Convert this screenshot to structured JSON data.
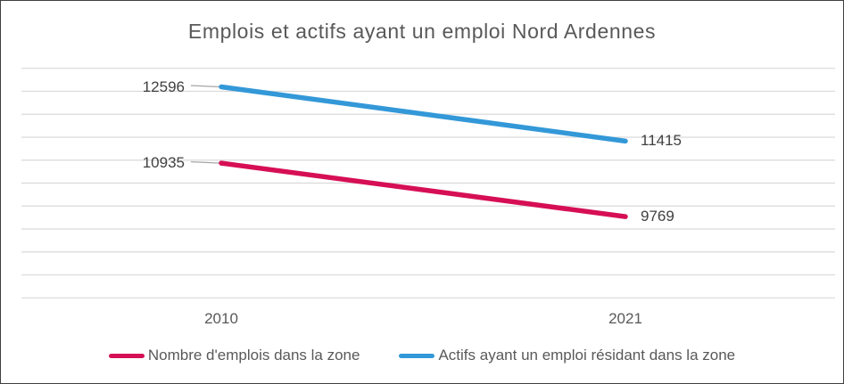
{
  "chart_data": {
    "type": "line",
    "title": "Emplois et actifs ayant un emploi Nord Ardennes",
    "categories": [
      "2010",
      "2021"
    ],
    "series": [
      {
        "name": "Nombre d'emplois dans la zone",
        "values": [
          10935,
          9769
        ],
        "color": "#d60f55"
      },
      {
        "name": "Actifs ayant un emploi résidant dans la zone",
        "values": [
          12596,
          11415
        ],
        "color": "#3398d8"
      }
    ],
    "xlabel": "",
    "ylabel": "",
    "ylim": [
      8000,
      13000
    ],
    "gridline_step": 500,
    "grid": true,
    "legend_position": "bottom",
    "data_labels": true
  },
  "colors": {
    "gridline": "#d9d9d9",
    "leader_line": "#a6a6a6",
    "data_label_text": "#404040",
    "axis_text": "#595959",
    "title_text": "#595959",
    "frame_border": "#3f3f3f",
    "background": "#ffffff"
  }
}
